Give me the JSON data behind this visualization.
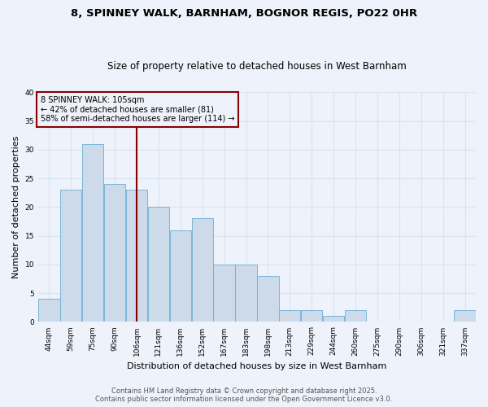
{
  "title1": "8, SPINNEY WALK, BARNHAM, BOGNOR REGIS, PO22 0HR",
  "title2": "Size of property relative to detached houses in West Barnham",
  "xlabel": "Distribution of detached houses by size in West Barnham",
  "ylabel": "Number of detached properties",
  "bar_values": [
    4,
    23,
    31,
    24,
    23,
    20,
    16,
    18,
    10,
    10,
    8,
    2,
    2,
    1,
    2,
    0,
    0,
    0,
    0,
    2
  ],
  "x_labels": [
    "44sqm",
    "59sqm",
    "75sqm",
    "90sqm",
    "106sqm",
    "121sqm",
    "136sqm",
    "152sqm",
    "167sqm",
    "183sqm",
    "198sqm",
    "213sqm",
    "229sqm",
    "244sqm",
    "260sqm",
    "275sqm",
    "290sqm",
    "306sqm",
    "321sqm",
    "337sqm"
  ],
  "bar_color": "#ccdaea",
  "bar_edge_color": "#6aaed6",
  "vline_bar_idx": 4,
  "vline_color": "#8b0000",
  "annotation_lines": [
    "8 SPINNEY WALK: 105sqm",
    "← 42% of detached houses are smaller (81)",
    "58% of semi-detached houses are larger (114) →"
  ],
  "annotation_box_color": "#8b0000",
  "ylim": [
    0,
    40
  ],
  "yticks": [
    0,
    5,
    10,
    15,
    20,
    25,
    30,
    35,
    40
  ],
  "footnote1": "Contains HM Land Registry data © Crown copyright and database right 2025.",
  "footnote2": "Contains public sector information licensed under the Open Government Licence v3.0.",
  "bg_color": "#eef2fa",
  "grid_color": "#d8e4f0",
  "title_fontsize": 9.5,
  "subtitle_fontsize": 8.5,
  "axis_label_fontsize": 8,
  "tick_fontsize": 6.5,
  "annotation_fontsize": 7,
  "ylabel_fontsize": 8
}
